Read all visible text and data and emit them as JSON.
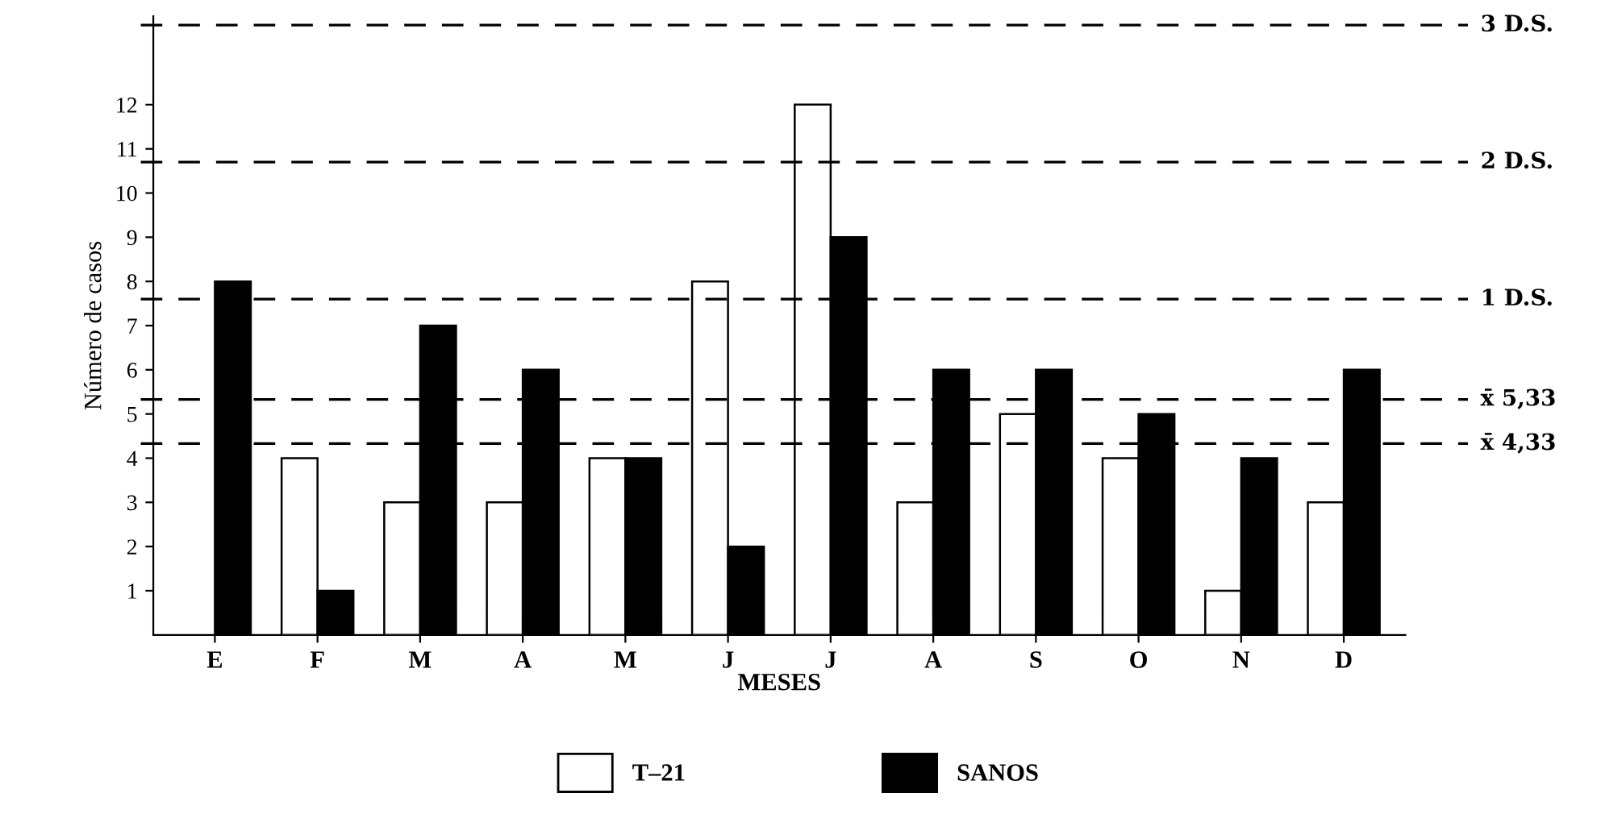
{
  "chart_data": {
    "type": "bar",
    "xlabel": "MESES",
    "ylabel": "Número de casos",
    "categories": [
      "E",
      "F",
      "M",
      "A",
      "M",
      "J",
      "J",
      "A",
      "S",
      "O",
      "N",
      "D"
    ],
    "series": [
      {
        "name": "T–21",
        "color": "#ffffff",
        "values": [
          null,
          4,
          3,
          3,
          4,
          8,
          12,
          3,
          5,
          4,
          1,
          3
        ]
      },
      {
        "name": "SANOS",
        "color": "#000000",
        "values": [
          8,
          1,
          7,
          6,
          4,
          2,
          9,
          6,
          6,
          5,
          4,
          6
        ]
      }
    ],
    "ylim": [
      0,
      14
    ],
    "yticks": [
      1,
      2,
      3,
      4,
      5,
      6,
      7,
      8,
      9,
      10,
      11,
      12
    ],
    "grid": false,
    "legend": "bottom",
    "ref_lines": [
      {
        "axis": "y",
        "value": 13.8,
        "label": "3 D.S.",
        "line_style": "dashed",
        "color": "#000000"
      },
      {
        "axis": "y",
        "value": 10.7,
        "label": "2 D.S.",
        "line_style": "dashed",
        "color": "#000000"
      },
      {
        "axis": "y",
        "value": 7.6,
        "label": "1 D.S.",
        "line_style": "dashed",
        "color": "#000000"
      },
      {
        "axis": "y",
        "value": 5.33,
        "label": "x̄ 5,33",
        "line_style": "dashed",
        "color": "#000000"
      },
      {
        "axis": "y",
        "value": 4.33,
        "label": "x̄ 4,33",
        "line_style": "dashed",
        "color": "#000000"
      }
    ]
  }
}
